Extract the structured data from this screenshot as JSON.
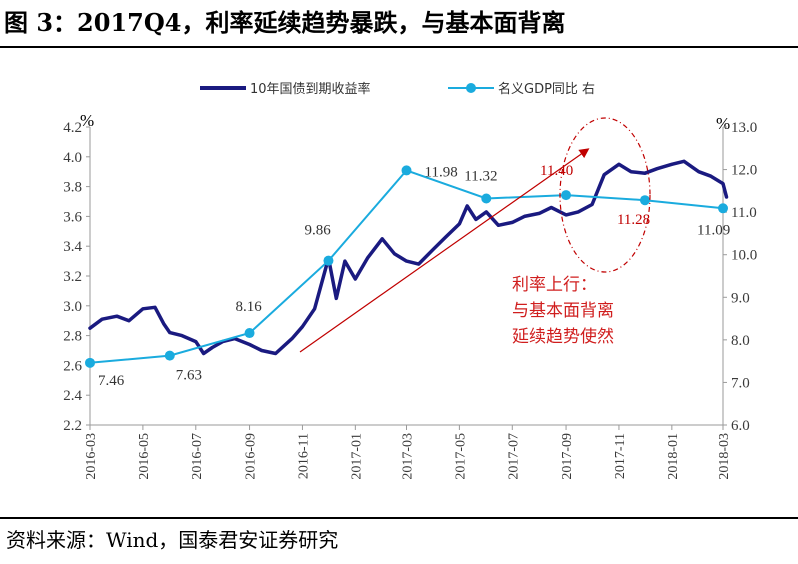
{
  "title": "图 3：2017Q4，利率延续趋势暴跌，与基本面背离",
  "source": "资料来源：Wind，国泰君安证券研究",
  "chart_data": {
    "type": "line",
    "legend": [
      "10年国债到期收益率",
      "名义GDP同比 右"
    ],
    "left_unit": "%",
    "right_unit": "%",
    "y_left": {
      "min": 2.2,
      "max": 4.2,
      "ticks": [
        "2.2",
        "2.4",
        "2.6",
        "2.8",
        "3.0",
        "3.2",
        "3.4",
        "3.6",
        "3.8",
        "4.0",
        "4.2"
      ]
    },
    "y_right": {
      "min": 6.0,
      "max": 13.0,
      "ticks": [
        "6.0",
        "7.0",
        "8.0",
        "9.0",
        "10.0",
        "11.0",
        "12.0",
        "13.0"
      ]
    },
    "x_ticks": [
      "2016-03",
      "2016-05",
      "2016-07",
      "2016-09",
      "2016-11",
      "2017-01",
      "2017-03",
      "2017-05",
      "2017-07",
      "2017-09",
      "2017-11",
      "2018-01",
      "2018-03"
    ],
    "series": [
      {
        "name": "10年国债到期收益率",
        "axis": "left",
        "color": "#1a1a80",
        "x": [
          "2016-03-01",
          "2016-03-15",
          "2016-04-01",
          "2016-04-15",
          "2016-05-01",
          "2016-05-15",
          "2016-05-25",
          "2016-06-01",
          "2016-06-15",
          "2016-07-01",
          "2016-07-10",
          "2016-07-20",
          "2016-08-01",
          "2016-08-15",
          "2016-09-01",
          "2016-09-15",
          "2016-10-01",
          "2016-10-20",
          "2016-11-01",
          "2016-11-15",
          "2016-12-01",
          "2016-12-10",
          "2016-12-20",
          "2017-01-01",
          "2017-01-15",
          "2017-02-01",
          "2017-02-15",
          "2017-03-01",
          "2017-03-15",
          "2017-04-01",
          "2017-04-15",
          "2017-05-01",
          "2017-05-10",
          "2017-05-20",
          "2017-06-01",
          "2017-06-15",
          "2017-07-01",
          "2017-07-15",
          "2017-08-01",
          "2017-08-15",
          "2017-09-01",
          "2017-09-15",
          "2017-10-01",
          "2017-10-15",
          "2017-11-01",
          "2017-11-15",
          "2017-12-01",
          "2017-12-15",
          "2018-01-01",
          "2018-01-15",
          "2018-02-01",
          "2018-02-15",
          "2018-03-01",
          "2018-03-05"
        ],
        "values": [
          2.85,
          2.91,
          2.93,
          2.9,
          2.98,
          2.99,
          2.88,
          2.82,
          2.8,
          2.76,
          2.68,
          2.72,
          2.76,
          2.78,
          2.74,
          2.7,
          2.68,
          2.78,
          2.86,
          2.98,
          3.32,
          3.05,
          3.3,
          3.18,
          3.32,
          3.45,
          3.35,
          3.3,
          3.28,
          3.38,
          3.46,
          3.55,
          3.67,
          3.58,
          3.63,
          3.54,
          3.56,
          3.6,
          3.62,
          3.66,
          3.61,
          3.63,
          3.68,
          3.88,
          3.95,
          3.9,
          3.89,
          3.92,
          3.95,
          3.97,
          3.9,
          3.87,
          3.82,
          3.73
        ]
      },
      {
        "name": "名义GDP同比 右",
        "axis": "right",
        "color": "#1aabde",
        "x": [
          "2016-03-01",
          "2016-06-01",
          "2016-09-01",
          "2016-12-01",
          "2017-03-01",
          "2017-06-01",
          "2017-09-01",
          "2017-12-01",
          "2018-03-01"
        ],
        "values": [
          7.46,
          7.63,
          8.16,
          9.86,
          11.98,
          11.32,
          11.4,
          11.28,
          11.09
        ],
        "labels": [
          "7.46",
          "7.63",
          "8.16",
          "9.86",
          "11.98",
          "11.32",
          "11.40",
          "11.28",
          "11.09"
        ]
      }
    ],
    "annotation": [
      "利率上行：",
      "与基本面背离",
      "延续趋势使然"
    ]
  }
}
